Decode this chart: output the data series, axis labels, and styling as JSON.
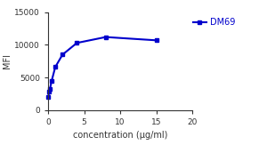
{
  "x": [
    0.06,
    0.12,
    0.25,
    0.5,
    1.0,
    2.0,
    4.0,
    8.0,
    15.0
  ],
  "y": [
    2000,
    2900,
    3200,
    4500,
    6600,
    8500,
    10300,
    11200,
    10700
  ],
  "color": "#0000cc",
  "marker": "s",
  "markersize": 3.5,
  "linewidth": 1.5,
  "label": "DM69",
  "xlabel": "concentration (μg/ml)",
  "ylabel": "MFI",
  "xlim": [
    0,
    20
  ],
  "ylim": [
    0,
    15000
  ],
  "xticks": [
    0,
    5,
    10,
    15,
    20
  ],
  "yticks": [
    0,
    5000,
    10000,
    15000
  ],
  "background_color": "#ffffff",
  "legend_fontsize": 7,
  "axis_label_fontsize": 7,
  "tick_fontsize": 6.5
}
